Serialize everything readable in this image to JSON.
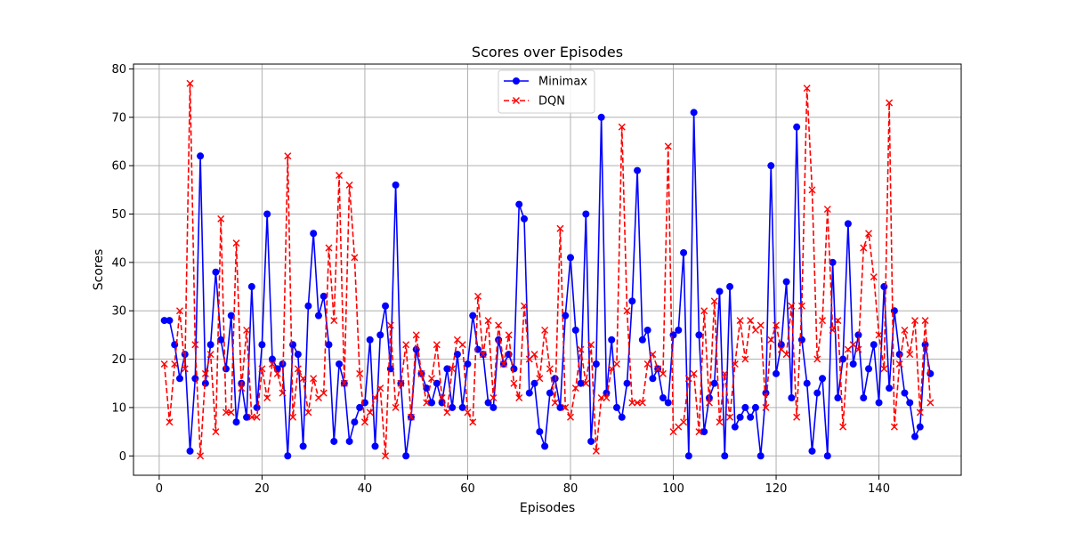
{
  "chart_data": {
    "type": "line",
    "title": "Scores over Episodes",
    "xlabel": "Episodes",
    "ylabel": "Scores",
    "xlim": [
      -5,
      156
    ],
    "ylim": [
      -4,
      81
    ],
    "xticks": [
      0,
      20,
      40,
      60,
      80,
      100,
      120,
      140
    ],
    "yticks": [
      0,
      10,
      20,
      30,
      40,
      50,
      60,
      70,
      80
    ],
    "grid": true,
    "legend_position": "top-center",
    "x": [
      1,
      2,
      3,
      4,
      5,
      6,
      7,
      8,
      9,
      10,
      11,
      12,
      13,
      14,
      15,
      16,
      17,
      18,
      19,
      20,
      21,
      22,
      23,
      24,
      25,
      26,
      27,
      28,
      29,
      30,
      31,
      32,
      33,
      34,
      35,
      36,
      37,
      38,
      39,
      40,
      41,
      42,
      43,
      44,
      45,
      46,
      47,
      48,
      49,
      50,
      51,
      52,
      53,
      54,
      55,
      56,
      57,
      58,
      59,
      60,
      61,
      62,
      63,
      64,
      65,
      66,
      67,
      68,
      69,
      70,
      71,
      72,
      73,
      74,
      75,
      76,
      77,
      78,
      79,
      80,
      81,
      82,
      83,
      84,
      85,
      86,
      87,
      88,
      89,
      90,
      91,
      92,
      93,
      94,
      95,
      96,
      97,
      98,
      99,
      100,
      101,
      102,
      103,
      104,
      105,
      106,
      107,
      108,
      109,
      110,
      111,
      112,
      113,
      114,
      115,
      116,
      117,
      118,
      119,
      120,
      121,
      122,
      123,
      124,
      125,
      126,
      127,
      128,
      129,
      130,
      131,
      132,
      133,
      134,
      135,
      136,
      137,
      138,
      139,
      140,
      141,
      142,
      143,
      144,
      145,
      146,
      147,
      148,
      149,
      150
    ],
    "series": [
      {
        "name": "Minimax",
        "color": "#0000ff",
        "style": "solid",
        "marker": "circle",
        "values": [
          28,
          28,
          23,
          16,
          21,
          1,
          16,
          62,
          15,
          23,
          38,
          24,
          18,
          29,
          7,
          15,
          8,
          35,
          10,
          23,
          50,
          20,
          18,
          19,
          0,
          23,
          21,
          2,
          31,
          46,
          29,
          33,
          23,
          3,
          19,
          15,
          3,
          7,
          10,
          11,
          24,
          2,
          25,
          31,
          18,
          56,
          15,
          0,
          8,
          22,
          17,
          14,
          11,
          15,
          11,
          18,
          10,
          21,
          10,
          19,
          29,
          22,
          21,
          11,
          10,
          24,
          19,
          21,
          18,
          52,
          49,
          13,
          15,
          5,
          2,
          13,
          16,
          10,
          29,
          41,
          26,
          15,
          50,
          3,
          19,
          70,
          13,
          24,
          10,
          8,
          15,
          32,
          59,
          24,
          26,
          16,
          18,
          12,
          11,
          25,
          26,
          42,
          0,
          71,
          25,
          5,
          12,
          15,
          34,
          0,
          35,
          6,
          8,
          10,
          8,
          10,
          0,
          13,
          60,
          17,
          23,
          36,
          12,
          68,
          24,
          15,
          1,
          13,
          16,
          0,
          40,
          12,
          20,
          48,
          19,
          25,
          12,
          18,
          23,
          11,
          35,
          14,
          30,
          21,
          13,
          11,
          4,
          6,
          23,
          17
        ]
      },
      {
        "name": "DQN",
        "color": "#ff0000",
        "style": "dashed",
        "marker": "x",
        "values": [
          19,
          7,
          19,
          30,
          18,
          77,
          23,
          0,
          17,
          21,
          5,
          49,
          9,
          9,
          44,
          14,
          26,
          8,
          8,
          18,
          12,
          19,
          17,
          13,
          62,
          8,
          18,
          16,
          9,
          16,
          12,
          13,
          43,
          28,
          58,
          15,
          56,
          41,
          17,
          7,
          9,
          12,
          14,
          0,
          27,
          10,
          15,
          23,
          8,
          25,
          17,
          11,
          16,
          23,
          12,
          9,
          18,
          24,
          23,
          9,
          7,
          33,
          21,
          28,
          12,
          27,
          19,
          25,
          15,
          12,
          31,
          20,
          21,
          16,
          26,
          18,
          11,
          47,
          10,
          8,
          14,
          22,
          15,
          23,
          1,
          12,
          12,
          18,
          19,
          68,
          30,
          11,
          11,
          11,
          19,
          21,
          18,
          17,
          64,
          5,
          6,
          7,
          16,
          17,
          5,
          30,
          11,
          32,
          7,
          17,
          8,
          19,
          28,
          20,
          28,
          26,
          27,
          10,
          24,
          27,
          22,
          21,
          31,
          8,
          31,
          76,
          55,
          20,
          28,
          51,
          26,
          28,
          6,
          22,
          23,
          22,
          43,
          46,
          37,
          25,
          18,
          73,
          6,
          19,
          26,
          21,
          28,
          9,
          28,
          11
        ]
      }
    ]
  }
}
